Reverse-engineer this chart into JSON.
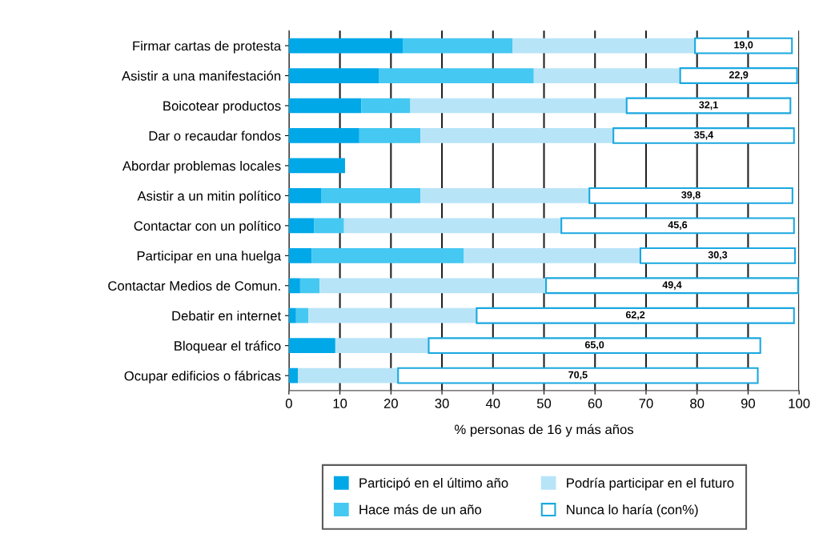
{
  "chart_data": {
    "type": "bar",
    "orientation": "horizontal",
    "stacked": true,
    "categories": [
      "Firmar cartas de protesta",
      "Asistir a una manifestación",
      "Boicotear productos",
      "Dar o recaudar fondos",
      "Abordar problemas locales",
      "Asistir a un mitin político",
      "Contactar con un político",
      "Participar en una huelga",
      "Contactar Medios de Comun.",
      "Debatir en internet",
      "Bloquear el tráfico",
      "Ocupar edificios o fábricas"
    ],
    "series": [
      {
        "name": "Participó en el último año",
        "color": "#00a8e8",
        "values": [
          22.3,
          17.6,
          14.2,
          13.8,
          11.0,
          6.4,
          4.9,
          4.5,
          2.2,
          1.4,
          9.1,
          1.8
        ]
      },
      {
        "name": "Hace más de un año",
        "color": "#45c8f2",
        "values": [
          21.5,
          30.4,
          9.6,
          12.0,
          null,
          19.4,
          5.9,
          29.8,
          3.8,
          2.4,
          null,
          null
        ]
      },
      {
        "name": "Podría participar en el futuro",
        "color": "#b8e4f8",
        "values": [
          35.8,
          28.7,
          42.4,
          37.8,
          null,
          33.1,
          42.6,
          34.6,
          44.4,
          33.0,
          18.3,
          19.6
        ]
      },
      {
        "name": "Nunca lo haría (con%)",
        "color": "#ffffff",
        "values": [
          19.0,
          22.9,
          32.1,
          35.4,
          null,
          39.8,
          45.6,
          30.3,
          49.4,
          62.2,
          65.0,
          70.5
        ],
        "value_labels": [
          "19,0",
          "22,9",
          "32,1",
          "35,4",
          null,
          "39,8",
          "45,6",
          "30,3",
          "49,4",
          "62,2",
          "65,0",
          "70,5"
        ]
      }
    ],
    "xlim": [
      0,
      100
    ],
    "xticks": [
      0,
      10,
      20,
      30,
      40,
      50,
      60,
      70,
      80,
      90,
      100
    ],
    "xlabel": "% personas de 16 y más años",
    "grid": "x",
    "legend": "bottom"
  }
}
